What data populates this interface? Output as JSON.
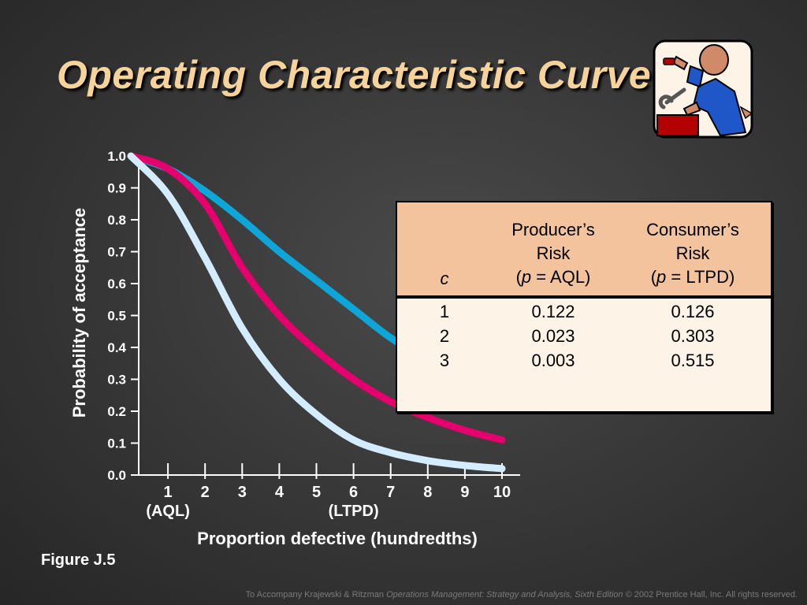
{
  "slide": {
    "title": "Operating Characteristic Curve",
    "caption": "Figure J.5",
    "footer": {
      "prefix": "To Accompany Krajewski & Ritzman",
      "book": "Operations Management: Strategy and Analysis, Sixth Edition",
      "suffix": "© 2002 Prentice Hall, Inc. All rights reserved."
    }
  },
  "clipart": {
    "icon": "worker-with-wrench-icon"
  },
  "chart_data": {
    "type": "line",
    "title": "",
    "ylabel": "Probability of acceptance",
    "xlabel": "Proportion defective (hundredths)",
    "xlim": [
      0,
      10
    ],
    "ylim": [
      0,
      1
    ],
    "yticks": [
      "0.0",
      "0.1",
      "0.2",
      "0.3",
      "0.4",
      "0.5",
      "0.6",
      "0.7",
      "0.8",
      "0.9",
      "1.0"
    ],
    "xticks": [
      "1",
      "2",
      "3",
      "4",
      "5",
      "6",
      "7",
      "8",
      "9",
      "10"
    ],
    "annotations": [
      {
        "x": 1,
        "label": "(AQL)"
      },
      {
        "x": 6,
        "label": "(LTPD)"
      }
    ],
    "series": [
      {
        "color": "#0ea5d8",
        "x": [
          0,
          1,
          2,
          3,
          4,
          5,
          6,
          7,
          8,
          9,
          10
        ],
        "y": [
          1.0,
          0.96,
          0.89,
          0.8,
          0.7,
          0.61,
          0.52,
          0.43,
          0.36,
          0.29,
          0.24
        ]
      },
      {
        "color": "#e6006e",
        "x": [
          0,
          1,
          2,
          3,
          4,
          5,
          6,
          7,
          8,
          9,
          10
        ],
        "y": [
          1.0,
          0.96,
          0.85,
          0.65,
          0.5,
          0.39,
          0.3,
          0.23,
          0.18,
          0.14,
          0.11
        ]
      },
      {
        "color": "#d4ecff",
        "x": [
          0,
          1,
          2,
          3,
          4,
          5,
          6,
          7,
          8,
          9,
          10
        ],
        "y": [
          1.0,
          0.88,
          0.68,
          0.46,
          0.3,
          0.19,
          0.11,
          0.07,
          0.045,
          0.03,
          0.02
        ]
      }
    ]
  },
  "table": {
    "headers": {
      "c": "c",
      "producer": [
        "Producer’s",
        "Risk",
        "(",
        "p",
        " = AQL)"
      ],
      "consumer": [
        "Consumer’s",
        "Risk",
        "(",
        "p",
        " = LTPD)"
      ]
    },
    "rows": [
      {
        "c": "1",
        "producer": "0.122",
        "consumer": "0.126"
      },
      {
        "c": "2",
        "producer": "0.023",
        "consumer": "0.303"
      },
      {
        "c": "3",
        "producer": "0.003",
        "consumer": "0.515"
      }
    ]
  }
}
